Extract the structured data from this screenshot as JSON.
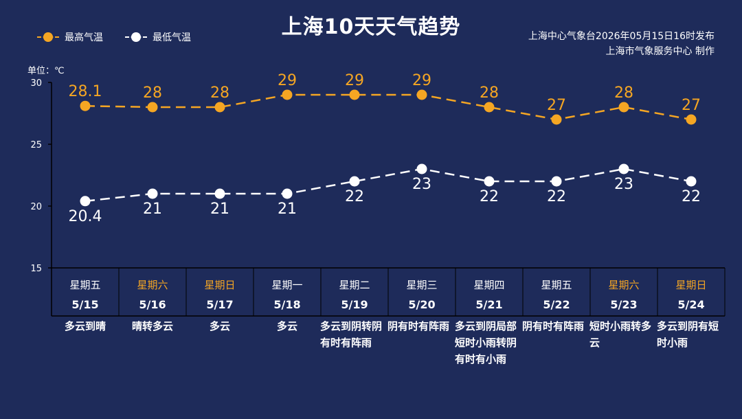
{
  "title": "上海10天天气趋势",
  "legend": {
    "high": "最高气温",
    "low": "最低气温"
  },
  "source": {
    "line1": "上海中心气象台2026年05月15日16时发布",
    "line2": "上海市气象服务中心  制作"
  },
  "unit_label": "单位：℃",
  "colors": {
    "background": "#1e2b5a",
    "high": "#f5a623",
    "low": "#ffffff"
  },
  "chart_data": {
    "type": "line",
    "categories": [
      "5/15",
      "5/16",
      "5/17",
      "5/18",
      "5/19",
      "5/20",
      "5/21",
      "5/22",
      "5/23",
      "5/24"
    ],
    "ylim": [
      15,
      30
    ],
    "yticks": [
      "30",
      "25",
      "20",
      "15"
    ],
    "grid": false,
    "legend_position": "top-left",
    "series": [
      {
        "name": "最高气温",
        "values": [
          28.1,
          28,
          28,
          29,
          29,
          29,
          28,
          27,
          28,
          27
        ],
        "labels": [
          "28.1",
          "28",
          "28",
          "29",
          "29",
          "29",
          "28",
          "27",
          "28",
          "27"
        ]
      },
      {
        "name": "最低气温",
        "values": [
          20.4,
          21,
          21,
          21,
          22,
          23,
          22,
          22,
          23,
          22
        ],
        "labels": [
          "20.4",
          "21",
          "21",
          "21",
          "22",
          "23",
          "22",
          "22",
          "23",
          "22"
        ]
      }
    ]
  },
  "days": [
    {
      "weekday": "星期五",
      "date": "5/15",
      "weather": "多云到晴",
      "weekend": false
    },
    {
      "weekday": "星期六",
      "date": "5/16",
      "weather": "晴转多云",
      "weekend": true
    },
    {
      "weekday": "星期日",
      "date": "5/17",
      "weather": "多云",
      "weekend": true
    },
    {
      "weekday": "星期一",
      "date": "5/18",
      "weather": "多云",
      "weekend": false
    },
    {
      "weekday": "星期二",
      "date": "5/19",
      "weather": "多云到阴转阴有时有阵雨",
      "weekend": false
    },
    {
      "weekday": "星期三",
      "date": "5/20",
      "weather": "阴有时有阵雨",
      "weekend": false
    },
    {
      "weekday": "星期四",
      "date": "5/21",
      "weather": "多云到阴局部短时小雨转阴有时有小雨",
      "weekend": false
    },
    {
      "weekday": "星期五",
      "date": "5/22",
      "weather": "阴有时有阵雨",
      "weekend": false
    },
    {
      "weekday": "星期六",
      "date": "5/23",
      "weather": "短时小雨转多云",
      "weekend": true
    },
    {
      "weekday": "星期日",
      "date": "5/24",
      "weather": "多云到阴有短时小雨",
      "weekend": true
    }
  ]
}
